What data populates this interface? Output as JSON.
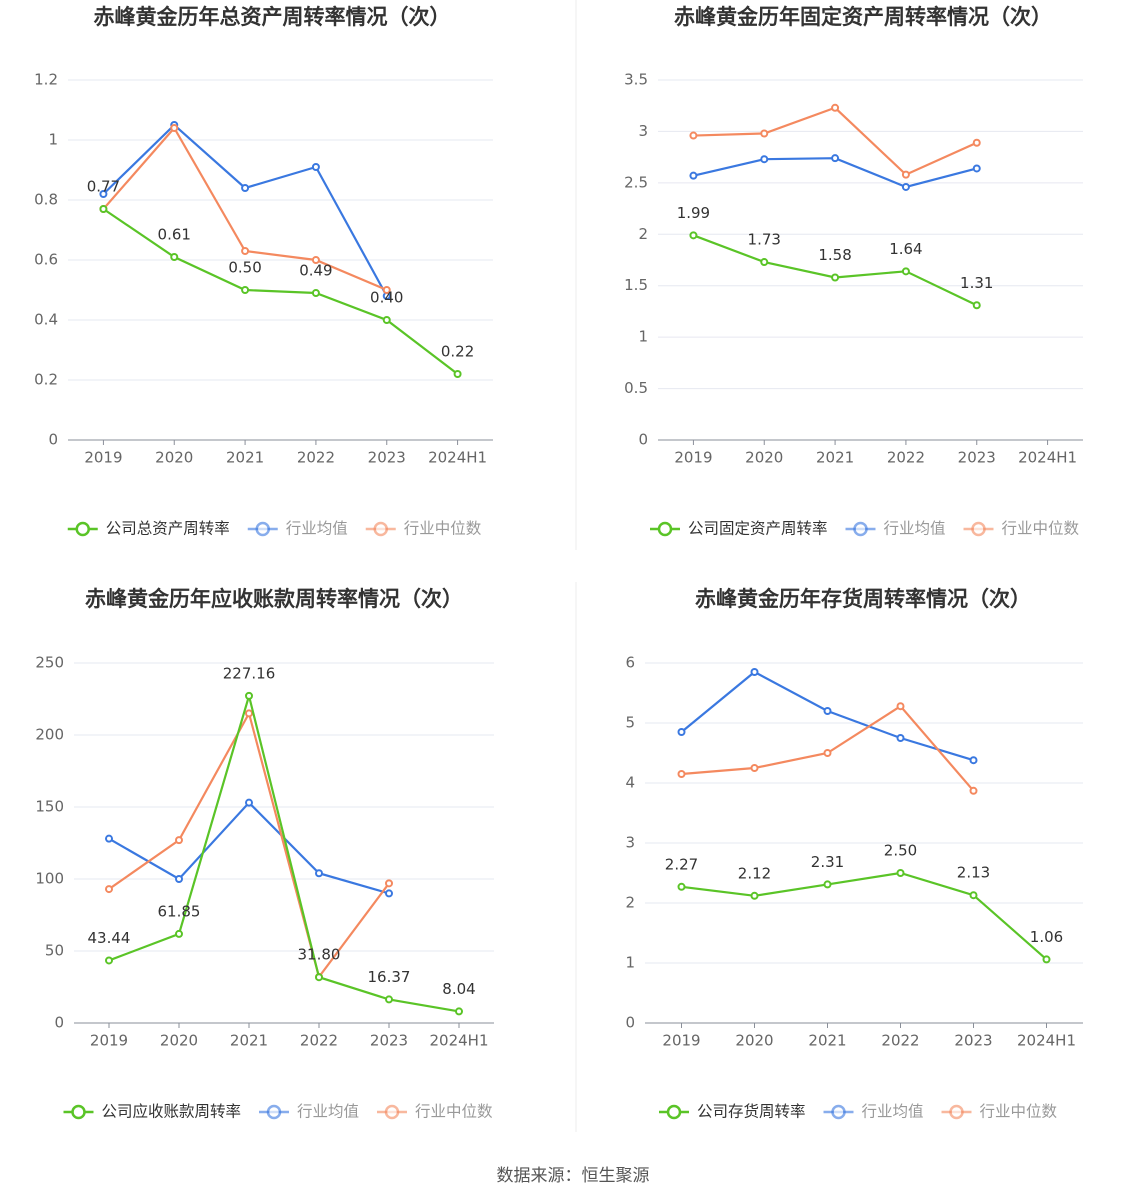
{
  "chart_data": [
    {
      "type": "line",
      "title": "赤峰黄金历年总资产周转率情况（次）",
      "categories": [
        "2019",
        "2020",
        "2021",
        "2022",
        "2023",
        "2024H1"
      ],
      "ylim": [
        0,
        1.2
      ],
      "yticks": [
        0,
        0.2,
        0.4,
        0.6,
        0.8,
        1,
        1.2
      ],
      "grid": true,
      "series": [
        {
          "name": "公司总资产周转率",
          "color": "#5ac427",
          "values": [
            0.77,
            0.61,
            0.5,
            0.49,
            0.4,
            0.22
          ],
          "value_labels": [
            "0.77",
            "0.61",
            "0.50",
            "0.49",
            "0.40",
            "0.22"
          ]
        },
        {
          "name": "行业均值",
          "color": "#3a78e0",
          "values": [
            0.82,
            1.05,
            0.84,
            0.91,
            0.48,
            null
          ]
        },
        {
          "name": "行业中位数",
          "color": "#f4895f",
          "values": [
            0.77,
            1.04,
            0.63,
            0.6,
            0.5,
            null
          ]
        }
      ]
    },
    {
      "type": "line",
      "title": "赤峰黄金历年固定资产周转率情况（次）",
      "categories": [
        "2019",
        "2020",
        "2021",
        "2022",
        "2023",
        "2024H1"
      ],
      "ylim": [
        0,
        3.5
      ],
      "yticks": [
        0,
        0.5,
        1,
        1.5,
        2,
        2.5,
        3,
        3.5
      ],
      "grid": true,
      "series": [
        {
          "name": "公司固定资产周转率",
          "color": "#5ac427",
          "values": [
            1.99,
            1.73,
            1.58,
            1.64,
            1.31,
            null
          ]
        },
        {
          "name": "行业均值",
          "color": "#3a78e0",
          "values": [
            2.57,
            2.73,
            2.74,
            2.46,
            2.64,
            null
          ]
        },
        {
          "name": "行业中位数",
          "color": "#f4895f",
          "values": [
            2.96,
            2.98,
            3.23,
            2.58,
            2.89,
            null
          ]
        }
      ]
    },
    {
      "type": "line",
      "title": "赤峰黄金历年应收账款周转率情况（次）",
      "categories": [
        "2019",
        "2020",
        "2021",
        "2022",
        "2023",
        "2024H1"
      ],
      "ylim": [
        0,
        250
      ],
      "yticks": [
        0,
        50,
        100,
        150,
        200,
        250
      ],
      "grid": true,
      "series": [
        {
          "name": "公司应收账款周转率",
          "color": "#5ac427",
          "values": [
            43.44,
            61.85,
            227.16,
            31.8,
            16.37,
            8.04
          ],
          "value_labels": [
            "43.44",
            "61.85",
            "227.16",
            "31.80",
            "16.37",
            "8.04"
          ]
        },
        {
          "name": "行业均值",
          "color": "#3a78e0",
          "values": [
            128,
            100,
            153,
            104,
            90,
            null
          ]
        },
        {
          "name": "行业中位数",
          "color": "#f4895f",
          "values": [
            93,
            127,
            215,
            32,
            97,
            null
          ]
        }
      ]
    },
    {
      "type": "line",
      "title": "赤峰黄金历年存货周转率情况（次）",
      "categories": [
        "2019",
        "2020",
        "2021",
        "2022",
        "2023",
        "2024H1"
      ],
      "ylim": [
        0,
        6
      ],
      "yticks": [
        0,
        1,
        2,
        3,
        4,
        5,
        6
      ],
      "grid": true,
      "series": [
        {
          "name": "公司存货周转率",
          "color": "#5ac427",
          "values": [
            2.27,
            2.12,
            2.31,
            2.5,
            2.13,
            1.06
          ],
          "value_labels": [
            "2.27",
            "2.12",
            "2.31",
            "2.50",
            "2.13",
            "1.06"
          ]
        },
        {
          "name": "行业均值",
          "color": "#3a78e0",
          "values": [
            4.85,
            5.85,
            5.2,
            4.75,
            4.38,
            null
          ]
        },
        {
          "name": "行业中位数",
          "color": "#f4895f",
          "values": [
            4.15,
            4.25,
            4.5,
            5.28,
            3.87,
            null
          ]
        }
      ]
    }
  ],
  "source": "数据来源：恒生聚源"
}
